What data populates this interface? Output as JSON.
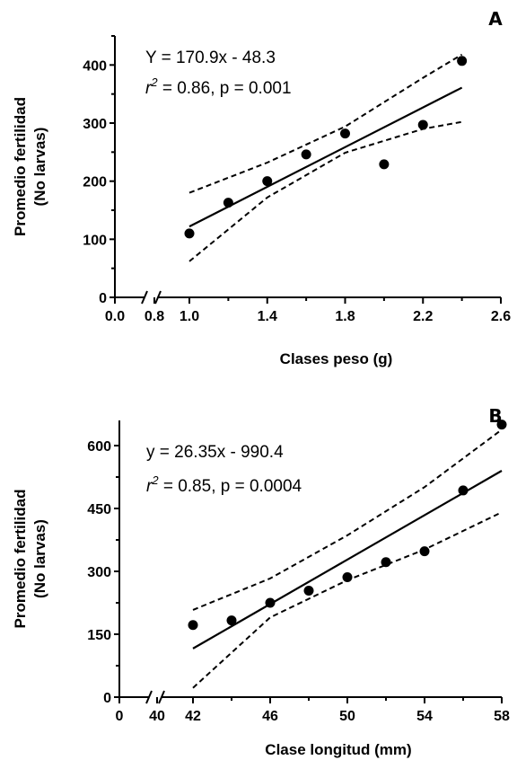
{
  "chart_data": [
    {
      "panel": "A",
      "type": "scatter",
      "equation": "Y = 170.9x - 48.3",
      "r2_label": "r",
      "r2_sup": "2",
      "r2_rest": " = 0.86, p = 0.001",
      "xlabel": "Clases peso (g)",
      "ylabel_line1": "Promedio fertilidad",
      "ylabel_line2": "(No larvas)",
      "xlim": [
        1.0,
        2.6
      ],
      "ylim": [
        0,
        450
      ],
      "x_break_ticks": [
        "0.0",
        "0.8"
      ],
      "x_ticks": [
        "1.0",
        "1.4",
        "1.8",
        "2.2",
        "2.6"
      ],
      "y_ticks": [
        "0",
        "100",
        "200",
        "300",
        "400"
      ],
      "points": [
        {
          "x": 1.0,
          "y": 110
        },
        {
          "x": 1.2,
          "y": 163
        },
        {
          "x": 1.4,
          "y": 200
        },
        {
          "x": 1.6,
          "y": 246
        },
        {
          "x": 1.8,
          "y": 282
        },
        {
          "x": 2.0,
          "y": 229
        },
        {
          "x": 2.2,
          "y": 297
        },
        {
          "x": 2.4,
          "y": 407
        }
      ],
      "fit": {
        "x": [
          1.0,
          2.4
        ],
        "y": [
          122,
          361
        ]
      },
      "ci_upper": {
        "x": [
          1.0,
          1.4,
          1.8,
          2.2,
          2.4
        ],
        "y": [
          180,
          232,
          294,
          378,
          418
        ]
      },
      "ci_lower": {
        "x": [
          1.0,
          1.4,
          1.8,
          2.2,
          2.4
        ],
        "y": [
          62,
          172,
          249,
          290,
          302
        ]
      }
    },
    {
      "panel": "B",
      "type": "scatter",
      "equation": "y = 26.35x - 990.4",
      "r2_label": "r",
      "r2_sup": "2",
      "r2_rest": " = 0.85, p = 0.0004",
      "xlabel": "Clase longitud (mm)",
      "ylabel_line1": "Promedio fertilidad",
      "ylabel_line2": "(No larvas)",
      "xlim": [
        42,
        58
      ],
      "ylim": [
        0,
        660
      ],
      "x_break_ticks": [
        "0",
        "40"
      ],
      "x_ticks": [
        "42",
        "46",
        "50",
        "54",
        "58"
      ],
      "y_ticks": [
        "0",
        "150",
        "300",
        "450",
        "600"
      ],
      "points": [
        {
          "x": 42,
          "y": 172
        },
        {
          "x": 44,
          "y": 183
        },
        {
          "x": 46,
          "y": 225
        },
        {
          "x": 48,
          "y": 254
        },
        {
          "x": 50,
          "y": 286
        },
        {
          "x": 52,
          "y": 322
        },
        {
          "x": 54,
          "y": 348
        },
        {
          "x": 56,
          "y": 493
        },
        {
          "x": 58,
          "y": 650
        }
      ],
      "fit": {
        "x": [
          42,
          58
        ],
        "y": [
          116,
          540
        ]
      },
      "ci_upper": {
        "x": [
          42,
          46,
          50,
          54,
          58
        ],
        "y": [
          208,
          283,
          386,
          501,
          638
        ]
      },
      "ci_lower": {
        "x": [
          42,
          46,
          50,
          54,
          58
        ],
        "y": [
          22,
          190,
          279,
          352,
          441
        ]
      }
    }
  ]
}
